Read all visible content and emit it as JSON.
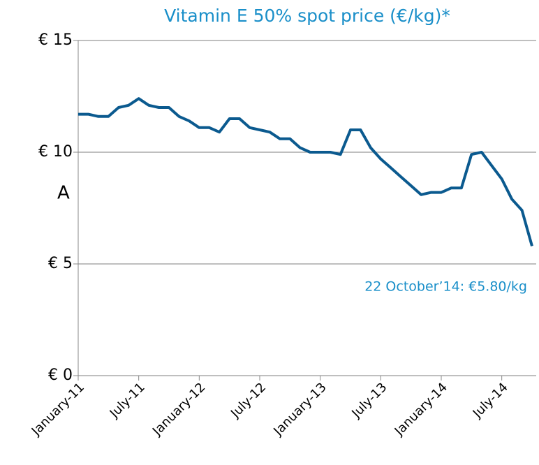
{
  "chart_data": {
    "type": "line",
    "title": "Vitamin E 50% spot price (€/kg)*",
    "annotation": "22 October’14: €5.80/kg",
    "fragment": "A",
    "x": [
      "2011-01",
      "2011-02",
      "2011-03",
      "2011-04",
      "2011-05",
      "2011-06",
      "2011-07",
      "2011-08",
      "2011-09",
      "2011-10",
      "2011-11",
      "2011-12",
      "2012-01",
      "2012-02",
      "2012-03",
      "2012-04",
      "2012-05",
      "2012-06",
      "2012-07",
      "2012-08",
      "2012-09",
      "2012-10",
      "2012-11",
      "2012-12",
      "2013-01",
      "2013-02",
      "2013-03",
      "2013-04",
      "2013-05",
      "2013-06",
      "2013-07",
      "2013-08",
      "2013-09",
      "2013-10",
      "2013-11",
      "2013-12",
      "2014-01",
      "2014-02",
      "2014-03",
      "2014-04",
      "2014-05",
      "2014-06",
      "2014-07",
      "2014-08",
      "2014-09",
      "2014-10"
    ],
    "series": [
      {
        "name": "Vitamin E 50%",
        "color": "#0b5a8f",
        "values": [
          11.7,
          11.7,
          11.6,
          11.6,
          12.0,
          12.1,
          12.4,
          12.1,
          12.0,
          12.0,
          11.6,
          11.4,
          11.1,
          11.1,
          10.9,
          11.5,
          11.5,
          11.1,
          11.0,
          10.9,
          10.6,
          10.6,
          10.2,
          10.0,
          10.0,
          10.0,
          9.9,
          11.0,
          11.0,
          10.2,
          9.7,
          9.3,
          8.9,
          8.5,
          8.1,
          8.2,
          8.2,
          8.4,
          8.4,
          9.9,
          10.0,
          9.4,
          8.8,
          7.9,
          7.4,
          5.8
        ]
      }
    ],
    "xlim": [
      "2011-01",
      "2014-10"
    ],
    "xticks": [
      {
        "value": "2011-01",
        "label": "January-11"
      },
      {
        "value": "2011-07",
        "label": "July-11"
      },
      {
        "value": "2012-01",
        "label": "January-12"
      },
      {
        "value": "2012-07",
        "label": "July-12"
      },
      {
        "value": "2013-01",
        "label": "January-13"
      },
      {
        "value": "2013-07",
        "label": "July-13"
      },
      {
        "value": "2014-01",
        "label": "January-14"
      },
      {
        "value": "2014-07",
        "label": "July-14"
      }
    ],
    "ylim": [
      0,
      15
    ],
    "yticks": [
      {
        "value": 0,
        "label": "€ 0"
      },
      {
        "value": 5,
        "label": "€ 5"
      },
      {
        "value": 10,
        "label": "€ 10"
      },
      {
        "value": 15,
        "label": "€ 15"
      }
    ],
    "grid": true
  }
}
